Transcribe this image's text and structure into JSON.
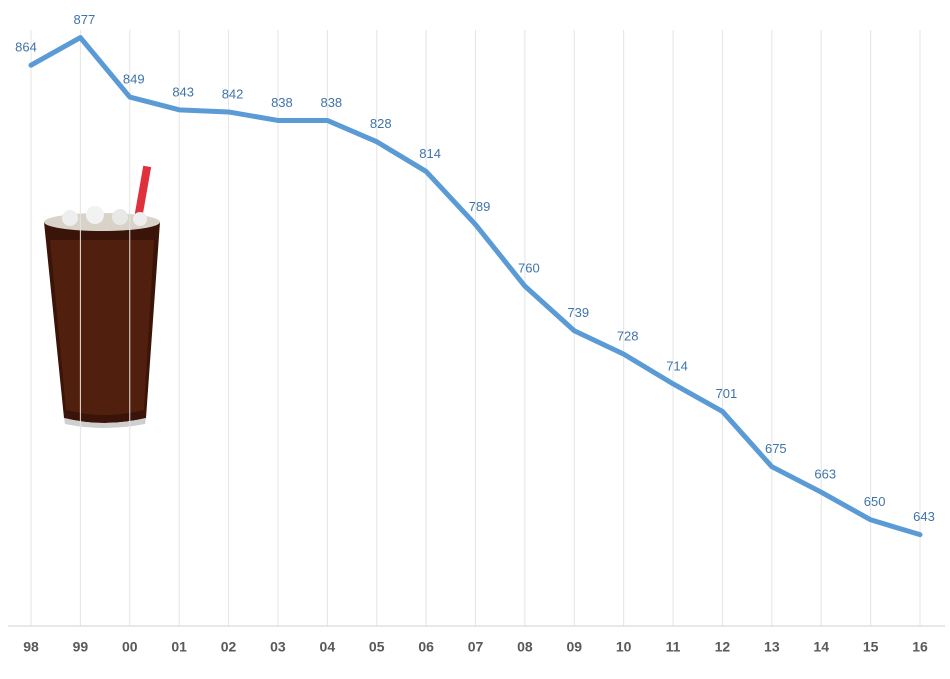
{
  "chart_data": {
    "type": "line",
    "categories": [
      "98",
      "99",
      "00",
      "01",
      "02",
      "03",
      "04",
      "05",
      "06",
      "07",
      "08",
      "09",
      "10",
      "11",
      "12",
      "13",
      "14",
      "15",
      "16"
    ],
    "values": [
      864,
      877,
      849,
      843,
      842,
      838,
      838,
      828,
      814,
      789,
      760,
      739,
      728,
      714,
      701,
      675,
      663,
      650,
      643
    ],
    "color": "#5b9bd5",
    "label_color": "#3f74a8",
    "ylim": [
      600,
      890
    ],
    "grid": true
  }
}
